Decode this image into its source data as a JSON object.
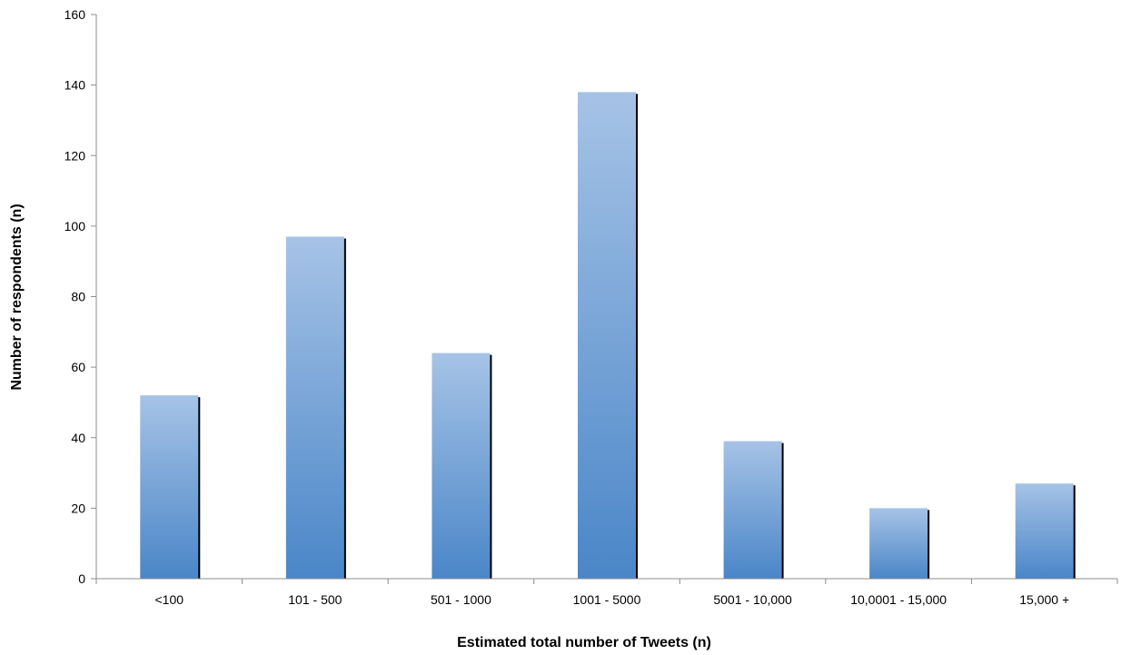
{
  "chart_data": {
    "type": "bar",
    "title": "",
    "xlabel": "Estimated total number of Tweets (n)",
    "ylabel": "Number of respondents (n)",
    "categories": [
      "<100",
      "101 - 500",
      "501 - 1000",
      "1001 - 5000",
      "5001 - 10,000",
      "10,0001 - 15,000",
      "15,000 +"
    ],
    "values": [
      52,
      97,
      64,
      138,
      39,
      20,
      27
    ],
    "ylim": [
      0,
      160
    ],
    "yticks": [
      "0",
      "20",
      "40",
      "60",
      "80",
      "100",
      "120",
      "140",
      "160"
    ],
    "grid": false,
    "legend": "none",
    "colors": {
      "bar_top": "#a6c3e6",
      "bar_bottom": "#4a86c8",
      "bar_shadow": "#000000",
      "axis": "#8c8c8c"
    }
  }
}
